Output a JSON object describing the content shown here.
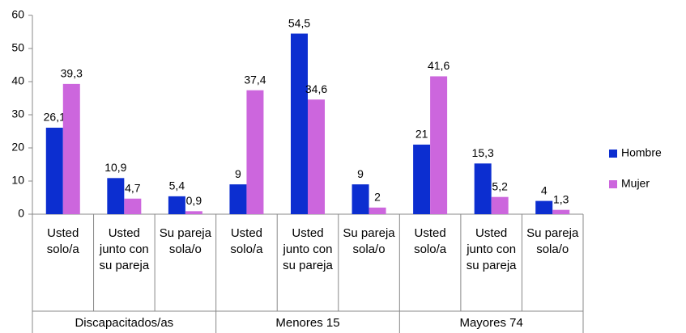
{
  "chart_data": {
    "type": "bar",
    "groups": [
      {
        "name": "Discapacitados/as",
        "categories": [
          "Usted solo/a",
          "Usted junto con su pareja",
          "Su pareja sola/o"
        ]
      },
      {
        "name": "Menores 15",
        "categories": [
          "Usted solo/a",
          "Usted junto con su pareja",
          "Su pareja sola/o"
        ]
      },
      {
        "name": "Mayores 74",
        "categories": [
          "Usted solo/a",
          "Usted junto con su pareja",
          "Su pareja sola/o"
        ]
      }
    ],
    "series": [
      {
        "name": "Hombre",
        "color": "#0c2ed0",
        "values": [
          26.1,
          10.9,
          5.4,
          9,
          54.5,
          9,
          21,
          15.3,
          4
        ],
        "value_labels": [
          "26,1",
          "10,9",
          "5,4",
          "9",
          "54,5",
          "9",
          "21",
          "15,3",
          "4"
        ]
      },
      {
        "name": "Mujer",
        "color": "#cc66dd",
        "values": [
          39.3,
          4.7,
          0.9,
          37.4,
          34.6,
          2,
          41.6,
          5.2,
          1.3
        ],
        "value_labels": [
          "39,3",
          "4,7",
          "0,9",
          "37,4",
          "34,6",
          "2",
          "41,6",
          "5,2",
          "1,3"
        ]
      }
    ],
    "ylim": [
      0,
      60
    ],
    "yticks": [
      0,
      10,
      20,
      30,
      40,
      50,
      60
    ],
    "legend": "right"
  }
}
